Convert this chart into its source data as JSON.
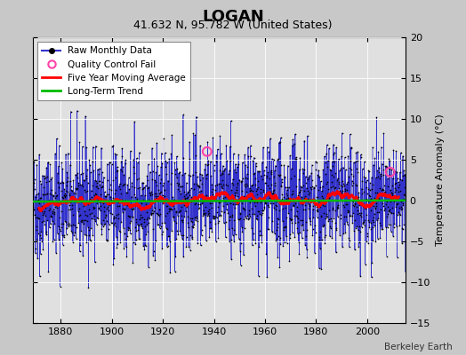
{
  "title": "LOGAN",
  "subtitle": "41.632 N, 95.782 W (United States)",
  "ylabel": "Temperature Anomaly (°C)",
  "attribution": "Berkeley Earth",
  "xlim": [
    1869,
    2015
  ],
  "ylim": [
    -15,
    20
  ],
  "yticks": [
    -15,
    -10,
    -5,
    0,
    5,
    10,
    15,
    20
  ],
  "xticks": [
    1880,
    1900,
    1920,
    1940,
    1960,
    1980,
    2000
  ],
  "start_year": 1869.0,
  "end_year": 2014.917,
  "seed": 42,
  "background_color": "#c8c8c8",
  "plot_bg_color": "#e0e0e0",
  "raw_color": "#3333cc",
  "dot_color": "#000000",
  "qc_color": "#ff44aa",
  "moving_avg_color": "#ff0000",
  "trend_color": "#00bb00",
  "legend_raw": "Raw Monthly Data",
  "legend_qc": "Quality Control Fail",
  "legend_ma": "Five Year Moving Average",
  "legend_trend": "Long-Term Trend",
  "title_fontsize": 13,
  "subtitle_fontsize": 9,
  "tick_fontsize": 8,
  "ylabel_fontsize": 8,
  "legend_fontsize": 7.5,
  "attribution_fontsize": 7.5
}
